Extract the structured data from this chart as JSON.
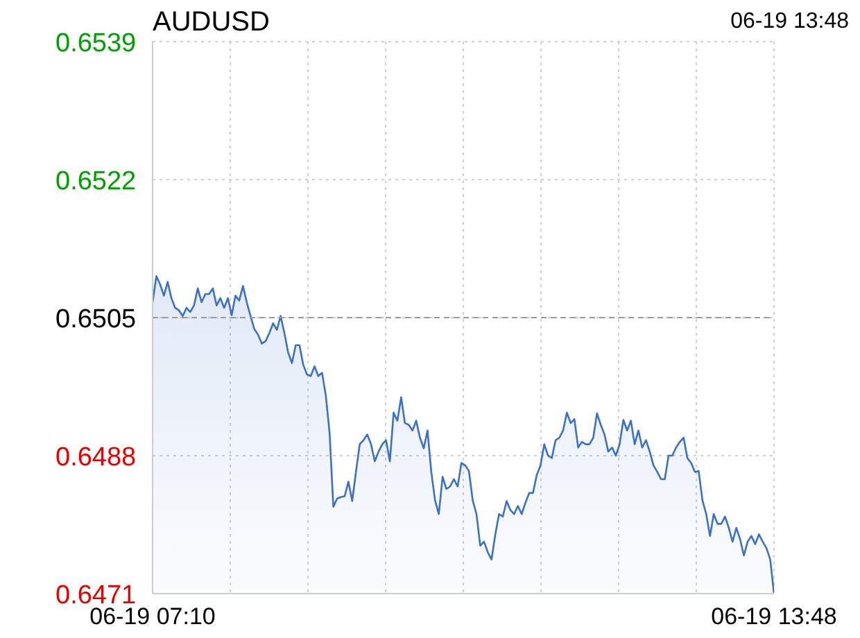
{
  "chart_data": {
    "type": "area",
    "title": "AUDUSD",
    "subtitle": "06-19 13:48",
    "categories": [
      "06-19 07:10",
      null,
      null,
      null,
      null,
      null,
      null,
      null,
      null,
      null,
      null,
      null,
      null,
      null,
      null,
      null,
      null,
      null,
      null,
      null,
      null,
      null,
      null,
      null,
      null,
      null,
      null,
      null,
      null,
      null,
      null,
      null,
      null,
      null,
      null,
      null,
      null,
      null,
      null,
      null,
      null,
      null,
      null,
      null,
      null,
      null,
      null,
      null,
      null,
      null,
      null,
      null,
      null,
      null,
      null,
      null,
      null,
      null,
      null,
      null,
      null,
      null,
      null,
      null,
      null,
      null,
      null,
      null,
      null,
      null,
      null,
      null,
      null,
      null,
      null,
      null,
      null,
      null,
      null,
      null,
      null,
      null,
      null,
      null,
      null,
      null,
      null,
      null,
      null,
      null,
      null,
      null,
      null,
      null,
      null,
      null,
      null,
      null,
      null,
      null,
      null,
      null,
      null,
      null,
      null,
      null,
      null,
      null,
      null,
      null,
      null,
      null,
      null,
      null,
      null,
      null,
      null,
      null,
      null,
      null,
      null,
      null,
      null,
      null,
      null,
      null,
      null,
      null,
      null,
      null,
      null,
      null,
      null,
      null,
      null,
      null,
      null,
      null,
      null,
      null,
      null,
      null,
      null,
      null,
      null,
      null,
      null,
      null,
      null,
      null,
      null,
      null,
      null,
      null,
      null,
      null,
      null,
      null,
      null,
      null,
      null,
      null,
      null,
      null,
      null,
      "06-19 13:48"
    ],
    "ylim": [
      0.6471,
      0.6539
    ],
    "yticks": [
      0.6471,
      0.6488,
      0.6505,
      0.6522,
      0.6539
    ],
    "grid": true,
    "marker": "none",
    "ref_lines": [
      {
        "axis": "y",
        "value": 0.6505,
        "color": "#999999",
        "line_style": "dashed"
      }
    ],
    "series": [
      {
        "color": "#3a70c8",
        "values": [
          0.65069,
          0.65101,
          0.65091,
          0.65077,
          0.65094,
          0.65074,
          0.65062,
          0.65059,
          0.65052,
          0.65062,
          0.65057,
          0.65065,
          0.65086,
          0.65069,
          0.65079,
          0.65079,
          0.65086,
          0.65065,
          0.65074,
          0.65062,
          0.65074,
          0.65053,
          0.65077,
          0.65071,
          0.65089,
          0.65069,
          0.65052,
          0.65036,
          0.65029,
          0.65018,
          0.65021,
          0.65031,
          0.65043,
          0.65035,
          0.65052,
          0.65031,
          0.65007,
          0.64994,
          0.65016,
          0.65016,
          0.64992,
          0.6498,
          0.64978,
          0.6499,
          0.64978,
          0.64982,
          0.64954,
          0.64908,
          0.64817,
          0.64827,
          0.64829,
          0.6483,
          0.64848,
          0.64824,
          0.6486,
          0.64894,
          0.64899,
          0.64906,
          0.64894,
          0.64873,
          0.64885,
          0.64894,
          0.64899,
          0.64873,
          0.64933,
          0.64923,
          0.64952,
          0.6492,
          0.64918,
          0.64911,
          0.64923,
          0.64902,
          0.64889,
          0.64911,
          0.6486,
          0.64825,
          0.64808,
          0.64854,
          0.64839,
          0.64842,
          0.64851,
          0.64842,
          0.64871,
          0.64868,
          0.64861,
          0.64825,
          0.64808,
          0.64769,
          0.64774,
          0.64761,
          0.64752,
          0.64783,
          0.64808,
          0.64805,
          0.64824,
          0.64813,
          0.64808,
          0.64818,
          0.64808,
          0.64822,
          0.64834,
          0.64834,
          0.64856,
          0.64868,
          0.64894,
          0.6488,
          0.64877,
          0.64899,
          0.64902,
          0.64911,
          0.64933,
          0.6492,
          0.64925,
          0.6489,
          0.64897,
          0.64894,
          0.64894,
          0.64902,
          0.64932,
          0.64918,
          0.64906,
          0.64885,
          0.6489,
          0.6488,
          0.64894,
          0.64924,
          0.64911,
          0.64923,
          0.64894,
          0.64911,
          0.6489,
          0.64899,
          0.64885,
          0.64868,
          0.6486,
          0.64851,
          0.64851,
          0.6488,
          0.6488,
          0.6489,
          0.64897,
          0.64902,
          0.64877,
          0.64871,
          0.6486,
          0.64861,
          0.64825,
          0.64808,
          0.64781,
          0.64808,
          0.64796,
          0.64796,
          0.64805,
          0.64791,
          0.64774,
          0.64791,
          0.64777,
          0.64757,
          0.64774,
          0.64781,
          0.64771,
          0.64783,
          0.64774,
          0.64766,
          0.64752,
          0.6471
        ]
      }
    ]
  }
}
